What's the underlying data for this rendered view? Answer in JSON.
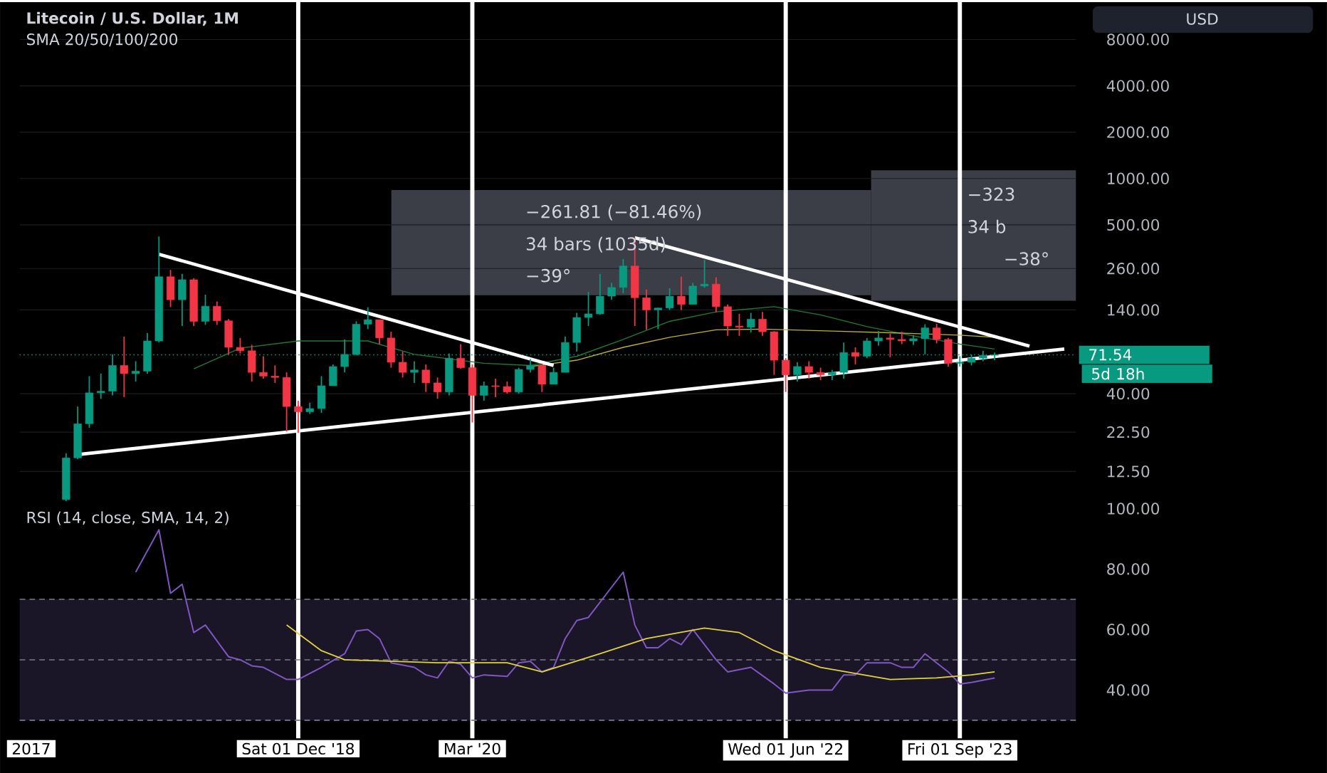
{
  "chart_data": [
    {
      "type": "candlestick",
      "title": "Litecoin / U.S. Dollar, 1M",
      "subtitle": "SMA 20/50/100/200",
      "x": [
        "2017-04",
        "2017-05",
        "2017-06",
        "2017-07",
        "2017-08",
        "2017-09",
        "2017-10",
        "2017-11",
        "2017-12",
        "2018-01",
        "2018-02",
        "2018-03",
        "2018-04",
        "2018-05",
        "2018-06",
        "2018-07",
        "2018-08",
        "2018-09",
        "2018-10",
        "2018-11",
        "2018-12",
        "2019-01",
        "2019-02",
        "2019-03",
        "2019-04",
        "2019-05",
        "2019-06",
        "2019-07",
        "2019-08",
        "2019-09",
        "2019-10",
        "2019-11",
        "2019-12",
        "2020-01",
        "2020-02",
        "2020-03",
        "2020-04",
        "2020-05",
        "2020-06",
        "2020-07",
        "2020-08",
        "2020-09",
        "2020-10",
        "2020-11",
        "2020-12",
        "2021-01",
        "2021-02",
        "2021-03",
        "2021-04",
        "2021-05",
        "2021-06",
        "2021-07",
        "2021-08",
        "2021-09",
        "2021-10",
        "2021-11",
        "2021-12",
        "2022-01",
        "2022-02",
        "2022-03",
        "2022-04",
        "2022-05",
        "2022-06",
        "2022-07",
        "2022-08",
        "2022-09",
        "2022-10",
        "2022-11",
        "2022-12",
        "2023-01",
        "2023-02",
        "2023-03",
        "2023-04",
        "2023-05",
        "2023-06",
        "2023-07",
        "2023-08",
        "2023-09",
        "2023-10",
        "2023-11",
        "2023-12"
      ],
      "ohlc": [
        [
          8.2,
          16.4,
          8.0,
          15.3
        ],
        [
          15.3,
          33,
          15.0,
          25.5
        ],
        [
          25.5,
          52,
          24,
          40.5
        ],
        [
          40.5,
          54,
          37,
          41.5
        ],
        [
          41.5,
          72,
          39,
          61
        ],
        [
          61,
          94,
          38,
          54
        ],
        [
          54,
          65,
          48,
          56
        ],
        [
          56,
          99,
          54,
          88
        ],
        [
          88,
          420,
          86,
          230
        ],
        [
          230,
          255,
          146,
          163
        ],
        [
          163,
          240,
          110,
          220
        ],
        [
          220,
          225,
          110,
          118
        ],
        [
          118,
          176,
          112,
          148
        ],
        [
          148,
          159,
          112,
          119
        ],
        [
          119,
          122,
          72,
          80
        ],
        [
          80,
          92,
          73,
          76
        ],
        [
          76,
          83,
          48,
          55
        ],
        [
          55,
          70,
          50,
          52
        ],
        [
          52,
          61,
          47,
          51
        ],
        [
          51,
          55,
          22.7,
          33
        ],
        [
          33,
          36,
          22.2,
          30.5
        ],
        [
          30.5,
          35,
          29.5,
          32
        ],
        [
          32,
          52,
          30,
          45
        ],
        [
          45,
          62,
          45,
          60
        ],
        [
          60,
          90,
          55,
          72
        ],
        [
          72,
          118,
          71,
          113
        ],
        [
          113,
          146,
          105,
          121
        ],
        [
          121,
          121,
          84,
          92
        ],
        [
          92,
          101,
          59,
          64
        ],
        [
          64,
          75,
          51,
          55
        ],
        [
          55,
          65,
          47,
          57
        ],
        [
          57,
          62,
          41,
          47
        ],
        [
          47,
          51,
          37,
          41
        ],
        [
          41,
          73,
          39,
          68
        ],
        [
          68,
          84,
          58,
          59
        ],
        [
          59,
          62,
          26,
          39
        ],
        [
          39,
          48,
          36,
          45
        ],
        [
          45,
          50,
          38,
          44.5
        ],
        [
          44.5,
          48,
          40,
          41
        ],
        [
          41,
          59,
          40,
          57.5
        ],
        [
          57.5,
          67,
          55,
          61
        ],
        [
          61,
          62,
          41,
          46
        ],
        [
          46,
          59,
          46,
          55
        ],
        [
          55,
          94,
          55,
          86
        ],
        [
          86,
          134,
          75,
          125
        ],
        [
          125,
          183,
          110,
          132
        ],
        [
          132,
          240,
          130,
          172
        ],
        [
          172,
          210,
          163,
          196
        ],
        [
          196,
          300,
          180,
          270
        ],
        [
          270,
          413,
          110,
          168
        ],
        [
          168,
          190,
          104,
          140
        ],
        [
          140,
          145,
          105,
          144
        ],
        [
          144,
          194,
          140,
          172
        ],
        [
          172,
          230,
          140,
          152
        ],
        [
          152,
          210,
          152,
          200
        ],
        [
          200,
          296,
          195,
          206
        ],
        [
          206,
          228,
          135,
          147
        ],
        [
          147,
          152,
          95,
          110
        ],
        [
          110,
          132,
          95,
          108
        ],
        [
          108,
          134,
          100,
          122
        ],
        [
          122,
          136,
          95,
          101
        ],
        [
          101,
          102,
          53,
          66
        ],
        [
          66,
          68,
          41,
          53
        ],
        [
          53,
          64,
          48,
          60
        ],
        [
          60,
          65,
          50,
          55
        ],
        [
          55,
          59,
          49,
          53
        ],
        [
          53,
          57,
          49,
          55
        ],
        [
          55,
          86,
          50,
          74
        ],
        [
          74,
          80,
          62,
          70
        ],
        [
          70,
          92,
          68,
          88
        ],
        [
          88,
          102,
          82,
          92
        ],
        [
          92,
          98,
          69,
          90
        ],
        [
          90,
          101,
          84,
          88
        ],
        [
          88,
          96,
          83,
          91
        ],
        [
          91,
          113,
          72,
          107
        ],
        [
          107,
          114,
          85,
          90
        ],
        [
          90,
          92,
          60,
          63
        ],
        [
          63,
          70,
          60,
          64
        ],
        [
          64,
          72,
          61,
          68
        ],
        [
          68,
          76,
          65,
          71
        ],
        [
          71,
          74,
          66,
          71.54
        ]
      ],
      "colors": [
        "#089981",
        "#089981",
        "#089981",
        "#089981",
        "#089981",
        "#f23645",
        "#089981",
        "#089981",
        "#089981",
        "#f23645",
        "#089981",
        "#f23645",
        "#089981",
        "#f23645",
        "#f23645",
        "#f23645",
        "#f23645",
        "#f23645",
        "#f23645",
        "#f23645",
        "#f23645",
        "#089981",
        "#089981",
        "#089981",
        "#089981",
        "#089981",
        "#089981",
        "#f23645",
        "#f23645",
        "#f23645",
        "#089981",
        "#f23645",
        "#f23645",
        "#089981",
        "#f23645",
        "#f23645",
        "#089981",
        "#f23645",
        "#f23645",
        "#089981",
        "#089981",
        "#f23645",
        "#089981",
        "#089981",
        "#089981",
        "#089981",
        "#089981",
        "#089981",
        "#089981",
        "#f23645",
        "#f23645",
        "#089981",
        "#089981",
        "#f23645",
        "#089981",
        "#089981",
        "#f23645",
        "#f23645",
        "#f23645",
        "#089981",
        "#f23645",
        "#f23645",
        "#f23645",
        "#089981",
        "#f23645",
        "#f23645",
        "#089981",
        "#089981",
        "#f23645",
        "#089981",
        "#089981",
        "#f23645",
        "#f23645",
        "#089981",
        "#089981",
        "#f23645",
        "#f23645",
        "#089981",
        "#089981",
        "#089981",
        "#089981"
      ],
      "series": [
        {
          "type": "line",
          "color": "#1e7b34",
          "x": [
            "2018-03",
            "2018-07",
            "2018-12",
            "2019-06",
            "2019-10",
            "2020-04",
            "2020-08",
            "2020-12",
            "2021-04",
            "2021-08",
            "2021-12",
            "2022-05",
            "2022-09",
            "2023-01",
            "2023-05",
            "2023-09",
            "2023-12"
          ],
          "values": [
            58,
            79,
            88,
            88,
            72,
            63,
            61,
            70,
            90,
            118,
            136,
            147,
            130,
            109,
            95,
            84,
            78
          ]
        },
        {
          "type": "line",
          "color": "#bfb22c",
          "x": [
            "2020-08",
            "2020-12",
            "2021-04",
            "2021-08",
            "2021-12",
            "2022-04",
            "2022-10",
            "2023-04",
            "2023-09",
            "2023-12"
          ],
          "values": [
            60,
            66,
            80,
            93,
            104,
            105,
            102,
            99,
            96,
            93
          ]
        },
        {
          "type": "line",
          "color": "#ffffff",
          "x": [
            "2017-12",
            "2020-10"
          ],
          "values": [
            322,
            61
          ]
        },
        {
          "type": "line",
          "color": "#ffffff",
          "x": [
            "2017-05",
            "2024-06"
          ],
          "values": [
            16.1,
            78
          ]
        },
        {
          "type": "line",
          "color": "#ffffff",
          "x": [
            "2021-05",
            "2024-03"
          ],
          "values": [
            412,
            81.5
          ]
        }
      ],
      "xlim": [
        "2016-12",
        "2024-07"
      ],
      "ylim": [
        7.5,
        14000
      ],
      "log": "y",
      "grid": "y",
      "tick_labels": "y",
      "yticks": [
        {
          "value": 12.5,
          "label": "12.50"
        },
        {
          "value": 22.5,
          "label": "22.50"
        },
        {
          "value": 40,
          "label": "40.00"
        },
        {
          "value": 140,
          "label": "140.00"
        },
        {
          "value": 260,
          "label": "260.00"
        },
        {
          "value": 500,
          "label": "500.00"
        },
        {
          "value": 1000,
          "label": "1000.00"
        },
        {
          "value": 2000,
          "label": "2000.00"
        },
        {
          "value": 4000,
          "label": "4000.00"
        },
        {
          "value": 8000,
          "label": "8000.00"
        }
      ],
      "ref_lines": [
        {
          "axis": "x",
          "value": "2018-12",
          "color": "#ffffff"
        },
        {
          "axis": "x",
          "value": "2020-03",
          "color": "#ffffff"
        },
        {
          "axis": "x",
          "value": "2022-06",
          "color": "#ffffff"
        },
        {
          "axis": "x",
          "value": "2023-09",
          "color": "#ffffff"
        },
        {
          "axis": "y",
          "value": 71.54,
          "label": "71.54",
          "color": "#089981",
          "line_style": "dotted"
        }
      ],
      "annotations": [
        "−261.81 (−81.46%)",
        "34 bars (1035d)",
        "−39°",
        "−323",
        "34 b",
        "−38°",
        "USD",
        "5d 18h"
      ]
    },
    {
      "type": "line",
      "title": "RSI (14, close, SMA, 14, 2)",
      "series": [
        {
          "color": "#7e57c2",
          "x": [
            "2017-10",
            "2017-12",
            "2018-01",
            "2018-02",
            "2018-03",
            "2018-04",
            "2018-06",
            "2018-07",
            "2018-08",
            "2018-09",
            "2018-11",
            "2018-12",
            "2019-02",
            "2019-04",
            "2019-05",
            "2019-06",
            "2019-07",
            "2019-08",
            "2019-10",
            "2019-11",
            "2019-12",
            "2020-01",
            "2020-02",
            "2020-03",
            "2020-04",
            "2020-06",
            "2020-07",
            "2020-08",
            "2020-09",
            "2020-10",
            "2020-11",
            "2020-12",
            "2021-01",
            "2021-04",
            "2021-05",
            "2021-06",
            "2021-07",
            "2021-08",
            "2021-09",
            "2021-10",
            "2021-12",
            "2022-01",
            "2022-03",
            "2022-05",
            "2022-06",
            "2022-08",
            "2022-10",
            "2022-11",
            "2022-12",
            "2023-01",
            "2023-03",
            "2023-04",
            "2023-05",
            "2023-06",
            "2023-08",
            "2023-09",
            "2023-10",
            "2023-12"
          ],
          "values": [
            79,
            93,
            72,
            75,
            59,
            61.5,
            51,
            50,
            48,
            47.5,
            43.5,
            43.5,
            47.5,
            52,
            59.5,
            60,
            57,
            49,
            47.5,
            45,
            44,
            49.5,
            48.5,
            44,
            45,
            44.5,
            49,
            49.5,
            46,
            47.5,
            57,
            63,
            64,
            79,
            61.5,
            54,
            54,
            57,
            55,
            60,
            50,
            46,
            47.5,
            42,
            39,
            40,
            40,
            45,
            45,
            49,
            49,
            47.5,
            47.5,
            52,
            46,
            42,
            42.5,
            44
          ]
        },
        {
          "color": "#e0d33a",
          "x": [
            "2018-11",
            "2019-02",
            "2019-04",
            "2019-12",
            "2020-06",
            "2020-09",
            "2021-02",
            "2021-06",
            "2021-11",
            "2022-02",
            "2022-05",
            "2022-09",
            "2023-03",
            "2023-07",
            "2023-10",
            "2023-12"
          ],
          "values": [
            61.5,
            53,
            50,
            49,
            49,
            46,
            52,
            57,
            60.5,
            59,
            53,
            47.5,
            43.5,
            44,
            45,
            46
          ]
        }
      ],
      "xlim": [
        "2016-12",
        "2024-07"
      ],
      "ylim": [
        24,
        101
      ],
      "yticks": [
        {
          "value": 40,
          "label": "40.00"
        },
        {
          "value": 60,
          "label": "60.00"
        },
        {
          "value": 80,
          "label": "80.00"
        },
        {
          "value": 100,
          "label": "100.00"
        }
      ],
      "xticks": [
        {
          "value": "2017-01",
          "label": "2017"
        },
        {
          "value": "2018-12",
          "label": "Sat 01 Dec '18"
        },
        {
          "value": "2020-03",
          "label": "Mar '20"
        },
        {
          "value": "2022-06",
          "label": "Wed 01 Jun '22"
        },
        {
          "value": "2023-09",
          "label": "Fri 01 Sep '23"
        }
      ],
      "ref_lines": [
        {
          "axis": "x",
          "value": "2018-12",
          "color": "#ffffff"
        },
        {
          "axis": "x",
          "value": "2020-03",
          "color": "#ffffff"
        },
        {
          "axis": "x",
          "value": "2022-06",
          "color": "#ffffff"
        },
        {
          "axis": "x",
          "value": "2023-09",
          "color": "#ffffff"
        },
        {
          "axis": "y",
          "value": 70,
          "color": "#787b86",
          "line_style": "dashed"
        },
        {
          "axis": "y",
          "value": 50,
          "color": "#787b86",
          "line_style": "dashed"
        },
        {
          "axis": "y",
          "value": 30,
          "color": "#787b86",
          "line_style": "dashed"
        }
      ],
      "bands": [
        {
          "axis": "y",
          "from": 30,
          "to": 70,
          "color": "#1a1628"
        }
      ]
    }
  ]
}
